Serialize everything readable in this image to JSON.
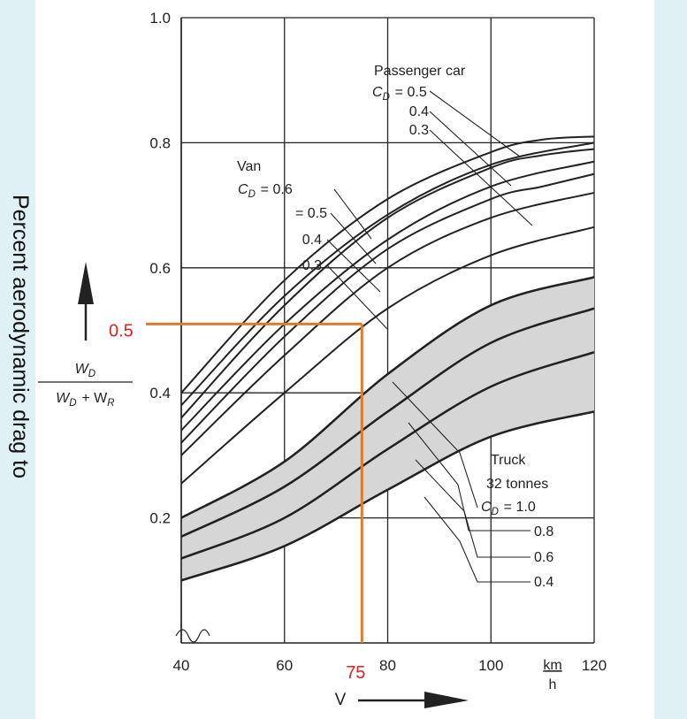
{
  "side_caption": "Percent aerodynamic drag to",
  "colors": {
    "background": "#dff1f5",
    "paper": "#ffffff",
    "ink": "#222222",
    "band": "#d6d6d6",
    "annotation": "#e07a2c",
    "annotation_text": "#e02020"
  },
  "chart_data": {
    "type": "line",
    "xlabel": "V",
    "x_unit_num": "km",
    "x_unit_den": "h",
    "ylabel_num": "W_D",
    "ylabel_den": "W_D + W_R",
    "xlim": [
      40,
      120
    ],
    "ylim": [
      0,
      1.0
    ],
    "x_ticks": [
      "40",
      "60",
      "80",
      "100",
      "120"
    ],
    "y_ticks": [
      "0.2",
      "0.4",
      "0.6",
      "0.8",
      "1.0"
    ],
    "y_tick_values": [
      0.2,
      0.4,
      0.6,
      0.8,
      1.0
    ],
    "grid": true,
    "groups": [
      {
        "title": [
          "Passenger car",
          "C_D = 0.5"
        ],
        "labels": [
          "0.4",
          "0.3"
        ],
        "series": [
          {
            "cd": "0.5",
            "x": [
              40,
              60,
              80,
              100,
              110,
              120
            ],
            "y": [
              0.4,
              0.58,
              0.71,
              0.785,
              0.805,
              0.81
            ]
          },
          {
            "cd": "0.4",
            "x": [
              40,
              60,
              80,
              100,
              110,
              120
            ],
            "y": [
              0.36,
              0.54,
              0.68,
              0.76,
              0.78,
              0.79
            ]
          },
          {
            "cd": "0.3",
            "x": [
              40,
              60,
              80,
              100,
              110,
              120
            ],
            "y": [
              0.32,
              0.49,
              0.63,
              0.71,
              0.73,
              0.75
            ]
          }
        ]
      },
      {
        "title": [
          "Van",
          "C_D = 0.6"
        ],
        "labels": [
          "= 0.5",
          "0.4",
          "0.3"
        ],
        "series": [
          {
            "cd": "0.6",
            "x": [
              40,
              60,
              80,
              100,
              120
            ],
            "y": [
              0.38,
              0.555,
              0.685,
              0.765,
              0.8
            ]
          },
          {
            "cd": "0.5",
            "x": [
              40,
              60,
              80,
              100,
              120
            ],
            "y": [
              0.34,
              0.51,
              0.645,
              0.73,
              0.77
            ]
          },
          {
            "cd": "0.4",
            "x": [
              40,
              60,
              80,
              100,
              120
            ],
            "y": [
              0.3,
              0.46,
              0.6,
              0.68,
              0.72
            ]
          },
          {
            "cd": "0.3",
            "x": [
              40,
              60,
              80,
              100,
              120
            ],
            "y": [
              0.255,
              0.4,
              0.535,
              0.62,
              0.665
            ]
          }
        ]
      },
      {
        "title": [
          "Truck",
          "32 tonnes",
          "C_D = 1.0"
        ],
        "labels": [
          "0.8",
          "0.6",
          "0.4"
        ],
        "series": [
          {
            "cd": "1.0",
            "x": [
              40,
              60,
              80,
              100,
              120
            ],
            "y": [
              0.2,
              0.29,
              0.43,
              0.54,
              0.585
            ]
          },
          {
            "cd": "0.8",
            "x": [
              40,
              60,
              80,
              100,
              120
            ],
            "y": [
              0.17,
              0.25,
              0.37,
              0.48,
              0.535
            ]
          },
          {
            "cd": "0.6",
            "x": [
              40,
              60,
              80,
              100,
              120
            ],
            "y": [
              0.135,
              0.2,
              0.31,
              0.41,
              0.465
            ]
          },
          {
            "cd": "0.4",
            "x": [
              40,
              60,
              80,
              100,
              120
            ],
            "y": [
              0.1,
              0.155,
              0.245,
              0.33,
              0.37
            ]
          }
        ]
      }
    ],
    "annotation": {
      "x": 75,
      "y": 0.51,
      "x_label": "75",
      "y_label": "0.5"
    }
  }
}
